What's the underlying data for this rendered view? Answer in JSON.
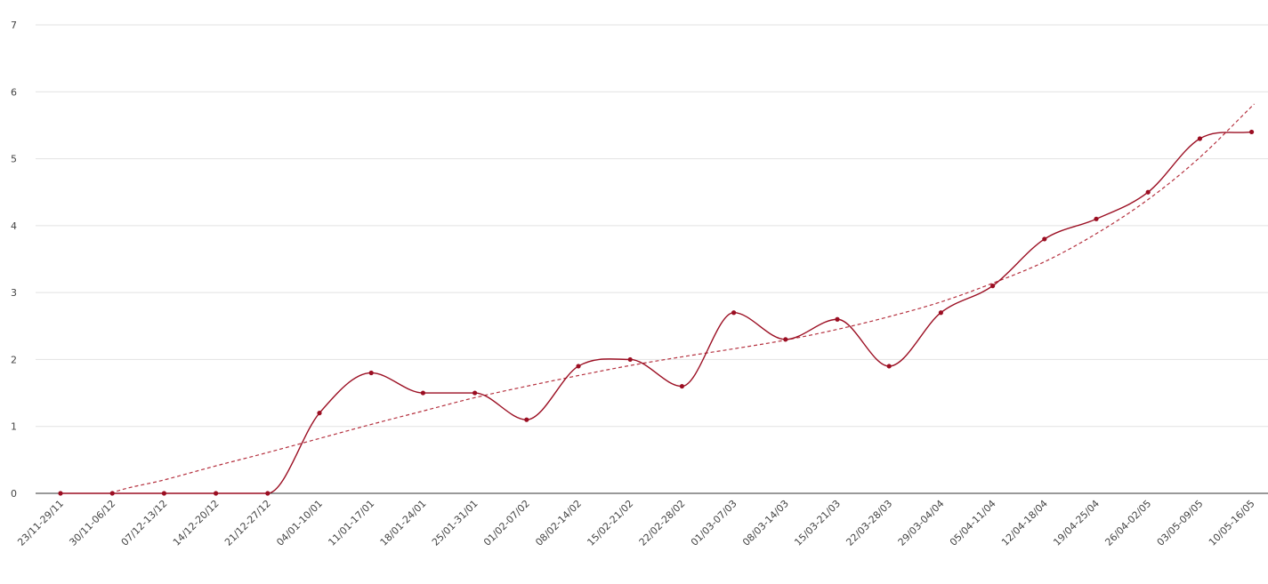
{
  "colors": {
    "series": "#9b0e22",
    "trend": "#b5313f",
    "grid": "#e2e2e2",
    "axis": "#333333",
    "text": "#444444"
  },
  "chart_data": {
    "type": "line",
    "title": "",
    "xlabel": "",
    "ylabel": "",
    "ylim": [
      0,
      7
    ],
    "yticks": [
      0,
      1,
      2,
      3,
      4,
      5,
      6,
      7
    ],
    "grid": "horizontal",
    "legend": "none",
    "categories": [
      "23/11-29/11",
      "30/11-06/12",
      "07/12-13/12",
      "14/12-20/12",
      "21/12-27/12",
      "04/01-10/01",
      "11/01-17/01",
      "18/01-24/01",
      "25/01-31/01",
      "01/02-07/02",
      "08/02-14/02",
      "15/02-21/02",
      "22/02-28/02",
      "01/03-07/03",
      "08/03-14/03",
      "15/03-21/03",
      "22/03-28/03",
      "29/03-04/04",
      "05/04-11/04",
      "12/04-18/04",
      "19/04-25/04",
      "26/04-02/05",
      "03/05-09/05",
      "10/05-16/05"
    ],
    "series": [
      {
        "values": [
          0,
          0,
          0,
          0,
          0,
          1.2,
          1.8,
          1.5,
          1.5,
          1.1,
          1.9,
          2.0,
          1.6,
          2.7,
          2.3,
          2.6,
          1.9,
          2.7,
          3.1,
          3.8,
          4.1,
          4.5,
          5.3,
          5.4
        ],
        "line_style": "smooth",
        "markers": true
      }
    ],
    "trendline": {
      "style": "dashed",
      "values": [
        -0.35,
        0.01,
        0.2,
        0.41,
        0.61,
        0.82,
        1.03,
        1.23,
        1.43,
        1.6,
        1.76,
        1.91,
        2.04,
        2.16,
        2.29,
        2.45,
        2.64,
        2.86,
        3.14,
        3.46,
        3.88,
        4.39,
        5.02,
        5.78
      ]
    }
  }
}
